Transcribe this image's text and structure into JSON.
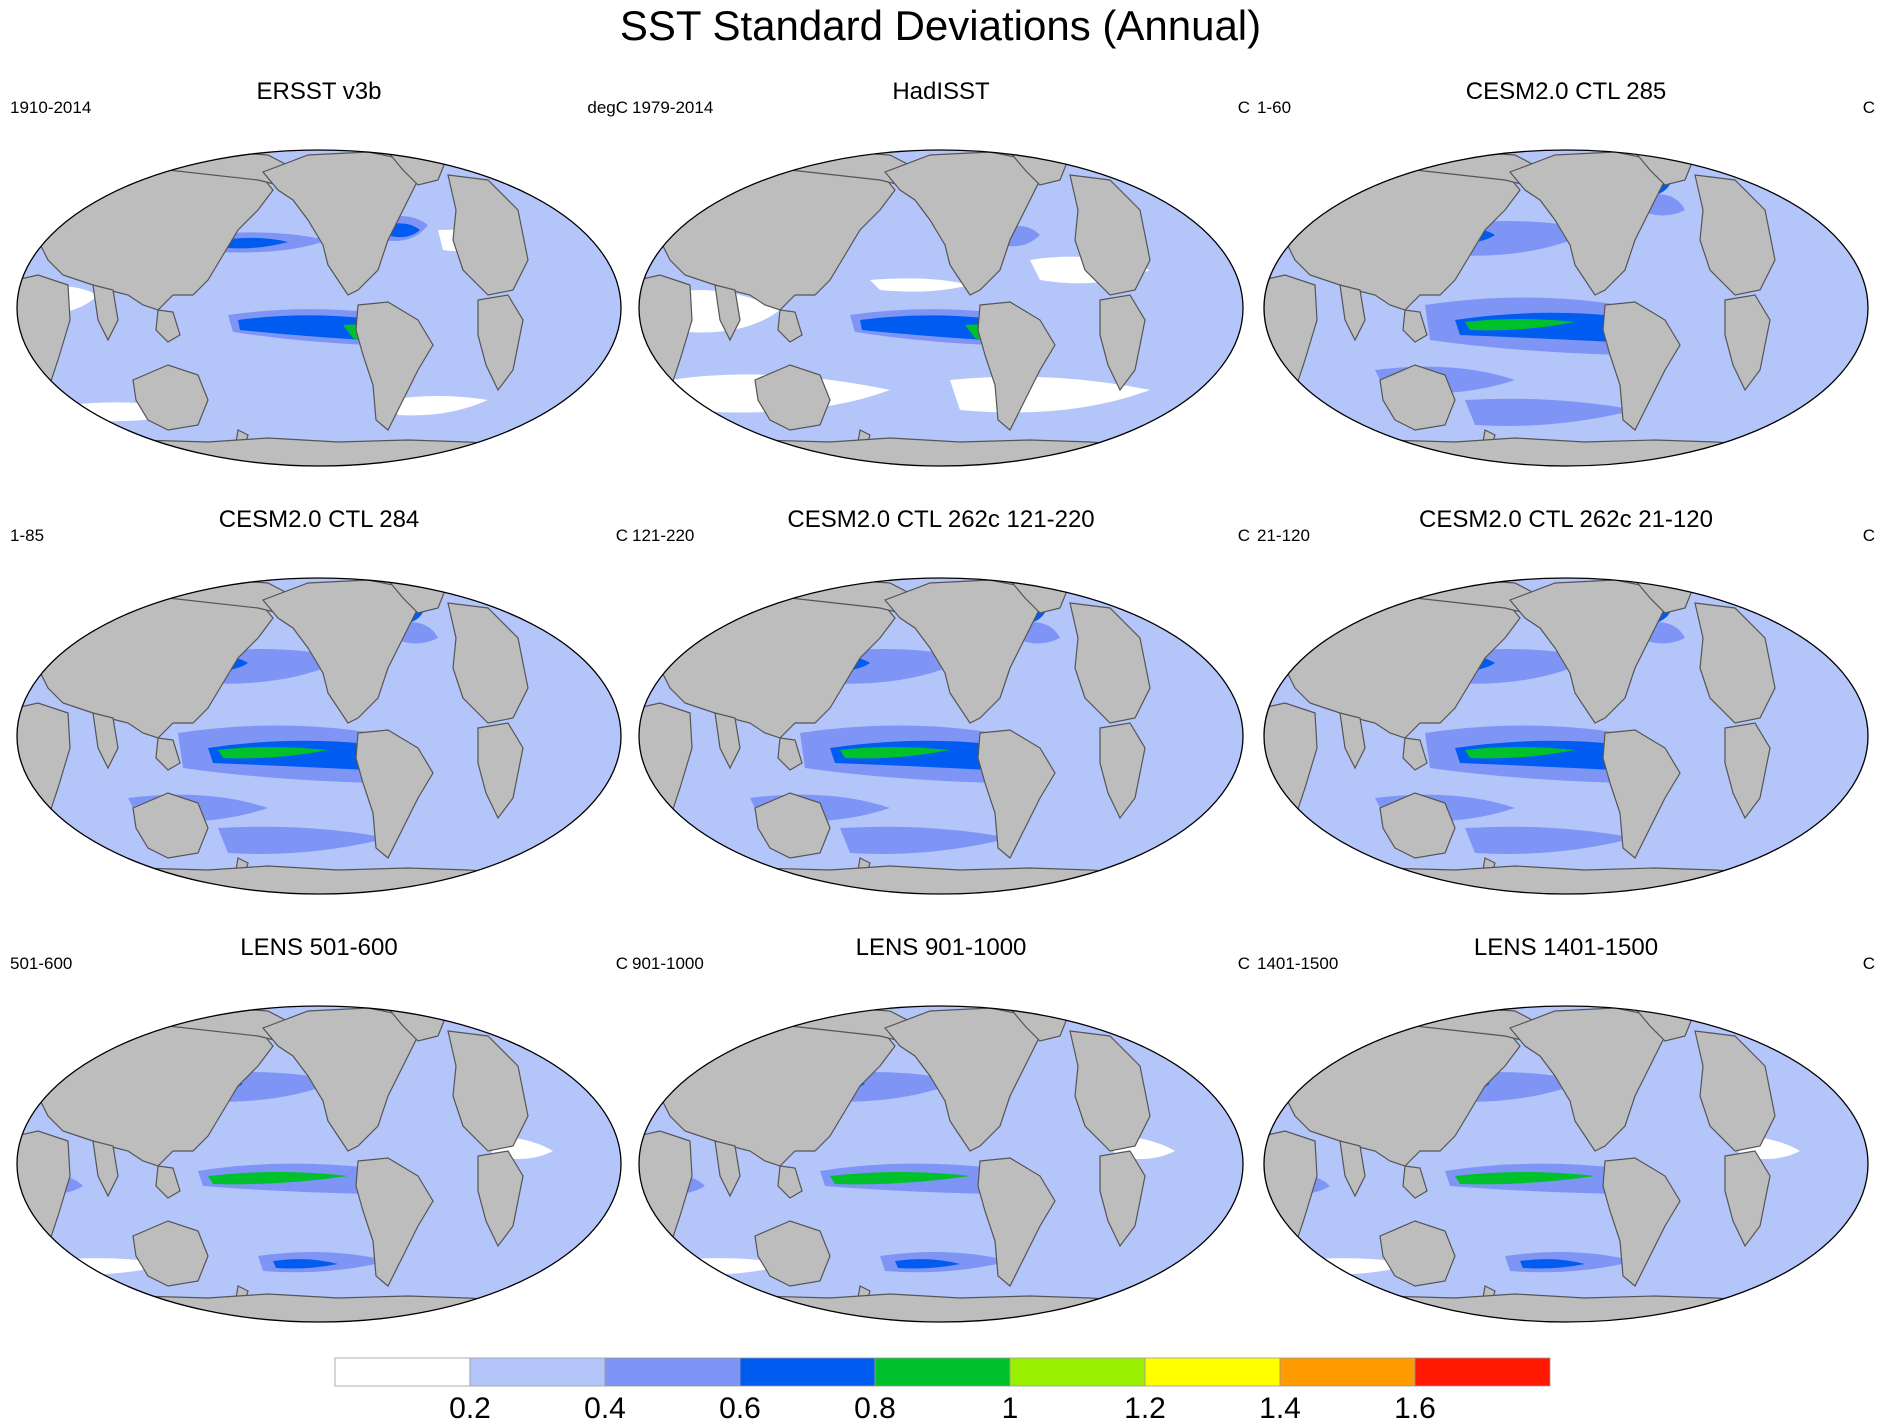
{
  "title": "SST Standard Deviations (Annual)",
  "colors": {
    "land": "#bdbdbd",
    "coast": "#555555",
    "levels": [
      "#ffffff",
      "#b4c5fa",
      "#7e95f5",
      "#005cf0",
      "#00c02c",
      "#98f000",
      "#ffff00",
      "#ff9a00",
      "#ff1800"
    ]
  },
  "panels": [
    {
      "title": "ERSST v3b",
      "left": "1910-2014",
      "right": "degC",
      "style": "obs"
    },
    {
      "title": "HadISST",
      "left": "1979-2014",
      "right": "C",
      "style": "obs2"
    },
    {
      "title": "CESM2.0 CTL 285",
      "left": "1-60",
      "right": "C",
      "style": "cesm"
    },
    {
      "title": "CESM2.0 CTL 284",
      "left": "1-85",
      "right": "C",
      "style": "cesm"
    },
    {
      "title": "CESM2.0 CTL 262c 121-220",
      "left": "121-220",
      "right": "C",
      "style": "cesm"
    },
    {
      "title": "CESM2.0 CTL 262c 21-120",
      "left": "21-120",
      "right": "C",
      "style": "cesm"
    },
    {
      "title": "LENS 501-600",
      "left": "501-600",
      "right": "C",
      "style": "lens"
    },
    {
      "title": "LENS 901-1000",
      "left": "901-1000",
      "right": "C",
      "style": "lens"
    },
    {
      "title": "LENS 1401-1500",
      "left": "1401-1500",
      "right": "C",
      "style": "lens"
    }
  ],
  "colorbar": {
    "labels": [
      "0.2",
      "0.4",
      "0.6",
      "0.8",
      "1",
      "1.2",
      "1.4",
      "1.6"
    ]
  }
}
